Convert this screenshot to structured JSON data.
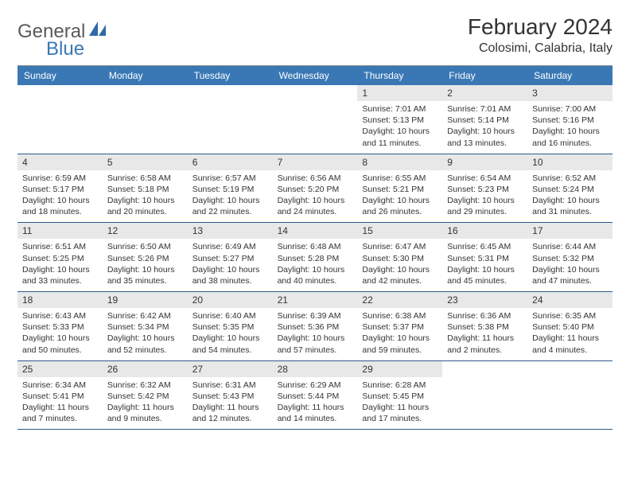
{
  "brand": {
    "line1": "General",
    "line2": "Blue"
  },
  "title": "February 2024",
  "location": "Colosimi, Calabria, Italy",
  "colors": {
    "header_bg": "#3a78b5",
    "header_text": "#ffffff",
    "daynum_bg": "#e8e8e8",
    "border": "#2f5a8a",
    "text": "#333333",
    "logo_gray": "#5a5a5a",
    "logo_blue": "#3a78b5"
  },
  "weekdays": [
    "Sunday",
    "Monday",
    "Tuesday",
    "Wednesday",
    "Thursday",
    "Friday",
    "Saturday"
  ],
  "leading_blanks": 4,
  "days": [
    {
      "n": "1",
      "sunrise": "7:01 AM",
      "sunset": "5:13 PM",
      "daylight": "10 hours and 11 minutes."
    },
    {
      "n": "2",
      "sunrise": "7:01 AM",
      "sunset": "5:14 PM",
      "daylight": "10 hours and 13 minutes."
    },
    {
      "n": "3",
      "sunrise": "7:00 AM",
      "sunset": "5:16 PM",
      "daylight": "10 hours and 16 minutes."
    },
    {
      "n": "4",
      "sunrise": "6:59 AM",
      "sunset": "5:17 PM",
      "daylight": "10 hours and 18 minutes."
    },
    {
      "n": "5",
      "sunrise": "6:58 AM",
      "sunset": "5:18 PM",
      "daylight": "10 hours and 20 minutes."
    },
    {
      "n": "6",
      "sunrise": "6:57 AM",
      "sunset": "5:19 PM",
      "daylight": "10 hours and 22 minutes."
    },
    {
      "n": "7",
      "sunrise": "6:56 AM",
      "sunset": "5:20 PM",
      "daylight": "10 hours and 24 minutes."
    },
    {
      "n": "8",
      "sunrise": "6:55 AM",
      "sunset": "5:21 PM",
      "daylight": "10 hours and 26 minutes."
    },
    {
      "n": "9",
      "sunrise": "6:54 AM",
      "sunset": "5:23 PM",
      "daylight": "10 hours and 29 minutes."
    },
    {
      "n": "10",
      "sunrise": "6:52 AM",
      "sunset": "5:24 PM",
      "daylight": "10 hours and 31 minutes."
    },
    {
      "n": "11",
      "sunrise": "6:51 AM",
      "sunset": "5:25 PM",
      "daylight": "10 hours and 33 minutes."
    },
    {
      "n": "12",
      "sunrise": "6:50 AM",
      "sunset": "5:26 PM",
      "daylight": "10 hours and 35 minutes."
    },
    {
      "n": "13",
      "sunrise": "6:49 AM",
      "sunset": "5:27 PM",
      "daylight": "10 hours and 38 minutes."
    },
    {
      "n": "14",
      "sunrise": "6:48 AM",
      "sunset": "5:28 PM",
      "daylight": "10 hours and 40 minutes."
    },
    {
      "n": "15",
      "sunrise": "6:47 AM",
      "sunset": "5:30 PM",
      "daylight": "10 hours and 42 minutes."
    },
    {
      "n": "16",
      "sunrise": "6:45 AM",
      "sunset": "5:31 PM",
      "daylight": "10 hours and 45 minutes."
    },
    {
      "n": "17",
      "sunrise": "6:44 AM",
      "sunset": "5:32 PM",
      "daylight": "10 hours and 47 minutes."
    },
    {
      "n": "18",
      "sunrise": "6:43 AM",
      "sunset": "5:33 PM",
      "daylight": "10 hours and 50 minutes."
    },
    {
      "n": "19",
      "sunrise": "6:42 AM",
      "sunset": "5:34 PM",
      "daylight": "10 hours and 52 minutes."
    },
    {
      "n": "20",
      "sunrise": "6:40 AM",
      "sunset": "5:35 PM",
      "daylight": "10 hours and 54 minutes."
    },
    {
      "n": "21",
      "sunrise": "6:39 AM",
      "sunset": "5:36 PM",
      "daylight": "10 hours and 57 minutes."
    },
    {
      "n": "22",
      "sunrise": "6:38 AM",
      "sunset": "5:37 PM",
      "daylight": "10 hours and 59 minutes."
    },
    {
      "n": "23",
      "sunrise": "6:36 AM",
      "sunset": "5:38 PM",
      "daylight": "11 hours and 2 minutes."
    },
    {
      "n": "24",
      "sunrise": "6:35 AM",
      "sunset": "5:40 PM",
      "daylight": "11 hours and 4 minutes."
    },
    {
      "n": "25",
      "sunrise": "6:34 AM",
      "sunset": "5:41 PM",
      "daylight": "11 hours and 7 minutes."
    },
    {
      "n": "26",
      "sunrise": "6:32 AM",
      "sunset": "5:42 PM",
      "daylight": "11 hours and 9 minutes."
    },
    {
      "n": "27",
      "sunrise": "6:31 AM",
      "sunset": "5:43 PM",
      "daylight": "11 hours and 12 minutes."
    },
    {
      "n": "28",
      "sunrise": "6:29 AM",
      "sunset": "5:44 PM",
      "daylight": "11 hours and 14 minutes."
    },
    {
      "n": "29",
      "sunrise": "6:28 AM",
      "sunset": "5:45 PM",
      "daylight": "11 hours and 17 minutes."
    }
  ],
  "labels": {
    "sunrise": "Sunrise:",
    "sunset": "Sunset:",
    "daylight": "Daylight:"
  }
}
